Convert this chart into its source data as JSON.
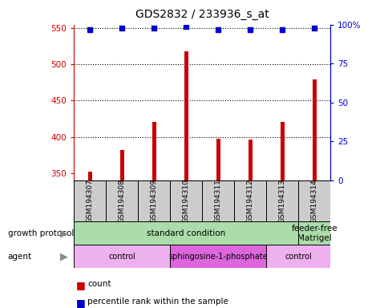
{
  "title": "GDS2832 / 233936_s_at",
  "samples": [
    "GSM194307",
    "GSM194308",
    "GSM194309",
    "GSM194310",
    "GSM194311",
    "GSM194312",
    "GSM194313",
    "GSM194314"
  ],
  "counts": [
    352,
    382,
    420,
    518,
    397,
    396,
    421,
    479
  ],
  "percentile_ranks": [
    97,
    98,
    98,
    99,
    97,
    97,
    97,
    98
  ],
  "ylim_left": [
    340,
    555
  ],
  "ylim_right": [
    0,
    100
  ],
  "yticks_left": [
    350,
    400,
    450,
    500,
    550
  ],
  "yticks_right": [
    0,
    25,
    50,
    75,
    100
  ],
  "right_tick_labels": [
    "0",
    "25",
    "50",
    "75",
    "100%"
  ],
  "bar_color": "#cc0000",
  "scatter_color": "#0000cc",
  "bar_width": 0.12,
  "growth_protocol_groups": [
    {
      "label": "standard condition",
      "start": 0,
      "end": 7,
      "color": "#aaddaa"
    },
    {
      "label": "feeder-free\nMatrigel",
      "start": 7,
      "end": 8,
      "color": "#aaddaa"
    }
  ],
  "agent_groups": [
    {
      "label": "control",
      "start": 0,
      "end": 3,
      "color": "#eeb0ee"
    },
    {
      "label": "sphingosine-1-phosphate",
      "start": 3,
      "end": 6,
      "color": "#dd66dd"
    },
    {
      "label": "control",
      "start": 6,
      "end": 8,
      "color": "#eeb0ee"
    }
  ],
  "legend_count_color": "#cc0000",
  "legend_percentile_color": "#0000cc",
  "background_color": "#ffffff",
  "sample_box_color": "#cccccc",
  "left_axis_color": "#cc0000",
  "right_axis_color": "#0000cc"
}
